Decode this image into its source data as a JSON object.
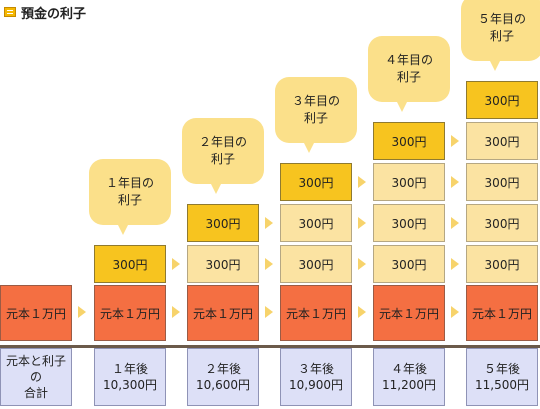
{
  "title": "預金の利子",
  "interest_label": "300円",
  "principal_label": "元本１万円",
  "initial_total_label": [
    "元本と利子の",
    "合計"
  ],
  "years": [
    {
      "bubble": [
        "１年目の",
        "利子"
      ],
      "total": [
        "１年後",
        "10,300円"
      ],
      "interest_boxes": 1
    },
    {
      "bubble": [
        "２年目の",
        "利子"
      ],
      "total": [
        "２年後",
        "10,600円"
      ],
      "interest_boxes": 2
    },
    {
      "bubble": [
        "３年目の",
        "利子"
      ],
      "total": [
        "３年後",
        "10,900円"
      ],
      "interest_boxes": 3
    },
    {
      "bubble": [
        "４年目の",
        "利子"
      ],
      "total": [
        "４年後",
        "11,200円"
      ],
      "interest_boxes": 4
    },
    {
      "bubble": [
        "５年目の",
        "利子"
      ],
      "total": [
        "５年後",
        "11,500円"
      ],
      "interest_boxes": 5
    }
  ]
}
